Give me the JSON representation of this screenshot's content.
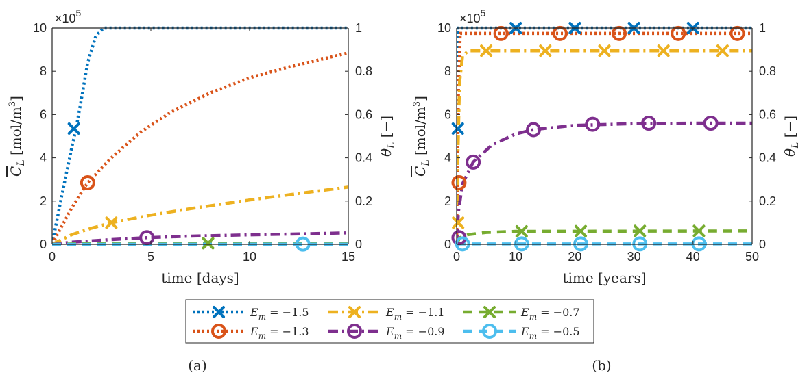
{
  "colors": {
    "-1.5": "#0072BD",
    "-1.3": "#D95319",
    "-1.1": "#EDB120",
    "-0.9": "#7E2F8E",
    "-0.7": "#77AC30",
    "-0.5": "#4DBEEE",
    "axis": "#262626"
  },
  "series_styles": [
    {
      "key": "-1.5",
      "marker": "x",
      "line": "dotted"
    },
    {
      "key": "-1.3",
      "marker": "o",
      "line": "dotted"
    },
    {
      "key": "-1.1",
      "marker": "x",
      "line": "dashdot"
    },
    {
      "key": "-0.9",
      "marker": "o",
      "line": "dashdot"
    },
    {
      "key": "-0.7",
      "marker": "x",
      "line": "dashed"
    },
    {
      "key": "-0.5",
      "marker": "o",
      "line": "dashed"
    }
  ],
  "legend": {
    "prefix": "E",
    "sub": "m",
    "items": [
      "= −1.5",
      "= −1.3",
      "= −1.1",
      "= −0.9",
      "= −0.7",
      "= −0.5"
    ]
  },
  "chart_data": [
    {
      "type": "line",
      "caption": "(a)",
      "xlabel_main": "time",
      "xlabel_unit": "[days]",
      "ylabel_left": "C̅L [mol/m³]",
      "ylabel_left_parts": [
        "C",
        "L",
        "[mol/m",
        "3",
        "]"
      ],
      "ylabel_right_parts": [
        "θ",
        "L",
        "[−]"
      ],
      "exponent_parts": [
        "×10",
        "5"
      ],
      "xlim": [
        0,
        15
      ],
      "ylim_left": [
        0,
        10
      ],
      "ylim_right": [
        0,
        1
      ],
      "xticks": [
        "0",
        "5",
        "10",
        "15"
      ],
      "yticks_left": [
        "0",
        "2",
        "4",
        "6",
        "8",
        "10"
      ],
      "yticks_right": [
        "0",
        "0.2",
        "0.4",
        "0.6",
        "0.8",
        "1"
      ],
      "series": [
        {
          "key": "-1.5",
          "x": [
            0,
            0.5,
            1.0,
            1.2,
            1.5,
            1.8,
            2.2,
            2.6,
            15
          ],
          "y": [
            0,
            2.3,
            4.5,
            5.3,
            6.8,
            8.4,
            9.6,
            10,
            10
          ],
          "markers_x": [
            1.1
          ],
          "markers_y": [
            5.35
          ]
        },
        {
          "key": "-1.3",
          "x": [
            0,
            1,
            1.8,
            3,
            4.5,
            6,
            8,
            10,
            12,
            15
          ],
          "y": [
            0,
            1.7,
            2.85,
            4.0,
            5.2,
            6.1,
            7.0,
            7.7,
            8.2,
            8.85
          ],
          "markers_x": [
            1.8
          ],
          "markers_y": [
            2.85
          ]
        },
        {
          "key": "-1.1",
          "x": [
            0,
            1,
            2,
            3,
            5,
            7,
            10,
            12.5,
            15
          ],
          "y": [
            0,
            0.45,
            0.75,
            1.0,
            1.35,
            1.65,
            2.05,
            2.35,
            2.65
          ],
          "markers_x": [
            3.0
          ],
          "markers_y": [
            1.0
          ]
        },
        {
          "key": "-0.9",
          "x": [
            0,
            1,
            2,
            3,
            4.8,
            7,
            10,
            12.5,
            15
          ],
          "y": [
            0,
            0.1,
            0.16,
            0.22,
            0.31,
            0.38,
            0.44,
            0.48,
            0.53
          ],
          "markers_x": [
            4.8
          ],
          "markers_y": [
            0.31
          ]
        },
        {
          "key": "-0.7",
          "x": [
            0,
            2,
            5,
            8,
            15
          ],
          "y": [
            0,
            0.04,
            0.05,
            0.05,
            0.05
          ],
          "markers_x": [
            7.9
          ],
          "markers_y": [
            0.05
          ]
        },
        {
          "key": "-0.5",
          "x": [
            0,
            15
          ],
          "y": [
            0,
            0.01
          ],
          "markers_x": [
            12.7
          ],
          "markers_y": [
            0.01
          ]
        }
      ]
    },
    {
      "type": "line",
      "caption": "(b)",
      "xlabel_main": "time",
      "xlabel_unit": "[years]",
      "ylabel_left": "C̅L [mol/m³]",
      "ylabel_left_parts": [
        "C",
        "L",
        "[mol/m",
        "3",
        "]"
      ],
      "ylabel_right_parts": [
        "θ",
        "L",
        "[−]"
      ],
      "exponent_parts": [
        "×10",
        "5"
      ],
      "xlim": [
        0,
        50
      ],
      "ylim_left": [
        0,
        10
      ],
      "ylim_right": [
        0,
        1
      ],
      "xticks": [
        "0",
        "10",
        "20",
        "30",
        "40",
        "50"
      ],
      "yticks_left": [
        "0",
        "2",
        "4",
        "6",
        "8",
        "10"
      ],
      "yticks_right": [
        "0",
        "0.2",
        "0.4",
        "0.6",
        "0.8",
        "1"
      ],
      "series": [
        {
          "key": "-1.5",
          "x": [
            0,
            0.05,
            0.1,
            50
          ],
          "y": [
            0,
            6,
            10,
            10
          ],
          "markers_x": [
            0.2,
            10,
            20,
            30,
            40
          ],
          "markers_y": [
            5.35,
            10,
            10,
            10,
            10
          ]
        },
        {
          "key": "-1.3",
          "x": [
            0,
            0.1,
            0.3,
            0.6,
            50
          ],
          "y": [
            0,
            2.8,
            7,
            9.75,
            9.75
          ],
          "markers_x": [
            0.4,
            7.5,
            17.5,
            27.5,
            37.5,
            47.5
          ],
          "markers_y": [
            2.85,
            9.75,
            9.75,
            9.75,
            9.75,
            9.75
          ]
        },
        {
          "key": "-1.1",
          "x": [
            0,
            0.2,
            0.5,
            1,
            2,
            3,
            50
          ],
          "y": [
            0,
            4,
            7.5,
            8.7,
            8.95,
            8.95,
            8.95
          ],
          "markers_x": [
            0.25,
            5,
            15,
            25,
            35,
            45
          ],
          "markers_y": [
            1.0,
            8.95,
            8.95,
            8.95,
            8.95,
            8.95
          ]
        },
        {
          "key": "-0.9",
          "x": [
            0,
            0.3,
            1,
            2.8,
            6,
            10,
            13,
            20,
            30,
            40,
            50
          ],
          "y": [
            0,
            1.5,
            2.8,
            3.8,
            4.6,
            5.1,
            5.3,
            5.5,
            5.58,
            5.6,
            5.6
          ],
          "markers_x": [
            0.4,
            2.8,
            13,
            23,
            32.5,
            43
          ],
          "markers_y": [
            0.31,
            3.8,
            5.3,
            5.55,
            5.6,
            5.6
          ]
        },
        {
          "key": "-0.7",
          "x": [
            0,
            0.5,
            2,
            5,
            10,
            50
          ],
          "y": [
            0,
            0.3,
            0.45,
            0.55,
            0.6,
            0.62
          ],
          "markers_x": [
            11,
            21,
            31,
            41
          ],
          "markers_y": [
            0.6,
            0.61,
            0.62,
            0.62
          ]
        },
        {
          "key": "-0.5",
          "x": [
            0,
            0.5,
            50
          ],
          "y": [
            0,
            0.02,
            0.02
          ],
          "markers_x": [
            1,
            11,
            21,
            31,
            41
          ],
          "markers_y": [
            0.02,
            0.02,
            0.02,
            0.02,
            0.02
          ]
        }
      ]
    }
  ]
}
